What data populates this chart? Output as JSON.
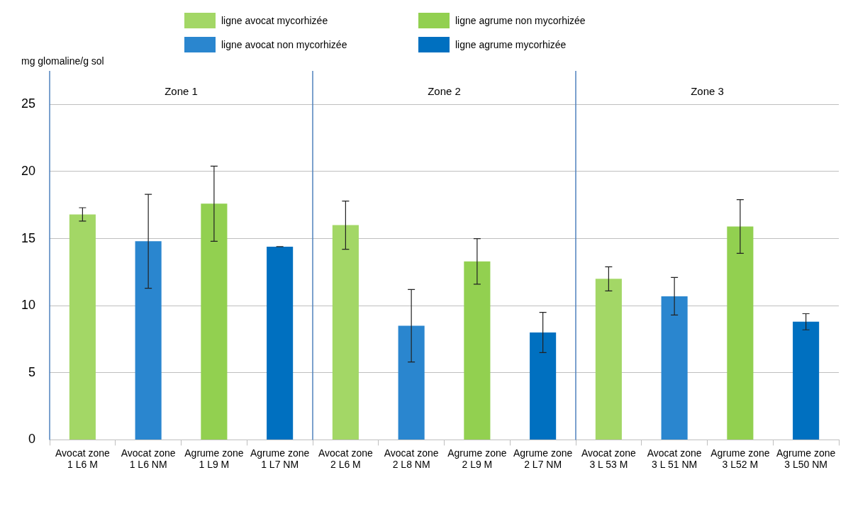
{
  "chart_data": {
    "type": "bar",
    "ylabel": "mg glomaline/g sol",
    "categories": [
      "Avocat zone 1 L6 M",
      "Avocat zone 1 L6 NM",
      "Agrume zone 1 L9 M",
      "Agrume zone 1 L7 NM",
      "Avocat zone 2 L6 M",
      "Avocat zone 2 L8 NM",
      "Agrume zone 2 L9 M",
      "Agrume zone 2 L7 NM",
      "Avocat zone 3 L 53 M",
      "Avocat zone 3 L 51 NM",
      "Agrume zone 3 L52 M",
      "Agrume zone 3 L50 NM"
    ],
    "series": [
      {
        "name": "ligne avocat mycorhizée",
        "color": "#a3d766",
        "values": [
          16.8,
          null,
          null,
          null,
          16.0,
          null,
          null,
          null,
          12.0,
          null,
          null,
          null
        ],
        "errors": [
          0.5,
          null,
          null,
          null,
          1.8,
          null,
          null,
          null,
          0.9,
          null,
          null,
          null
        ]
      },
      {
        "name": "ligne avocat non mycorhizée",
        "color": "#2a86cf",
        "values": [
          null,
          14.8,
          null,
          null,
          null,
          8.5,
          null,
          null,
          null,
          10.7,
          null,
          null
        ],
        "errors": [
          null,
          3.5,
          null,
          null,
          null,
          2.7,
          null,
          null,
          null,
          1.4,
          null,
          null
        ]
      },
      {
        "name": "ligne agrume non mycorhizée",
        "color": "#92d050",
        "values": [
          null,
          null,
          17.6,
          null,
          null,
          null,
          13.3,
          null,
          null,
          null,
          15.9,
          null
        ],
        "errors": [
          null,
          null,
          2.8,
          null,
          null,
          null,
          1.7,
          null,
          null,
          null,
          2.0,
          null
        ]
      },
      {
        "name": "ligne agrume mycorhizée",
        "color": "#0070c0",
        "values": [
          null,
          null,
          null,
          14.4,
          null,
          null,
          null,
          8.0,
          null,
          null,
          null,
          8.8
        ],
        "errors": [
          null,
          null,
          null,
          0,
          null,
          null,
          null,
          1.5,
          null,
          null,
          null,
          0.6
        ]
      }
    ],
    "ylim": [
      0,
      27.5
    ],
    "yticks": [
      0,
      5,
      10,
      15,
      20,
      25
    ],
    "grid": "y",
    "legend": "top",
    "annotations": [
      "Zone 1",
      "Zone 2",
      "Zone 3"
    ]
  }
}
